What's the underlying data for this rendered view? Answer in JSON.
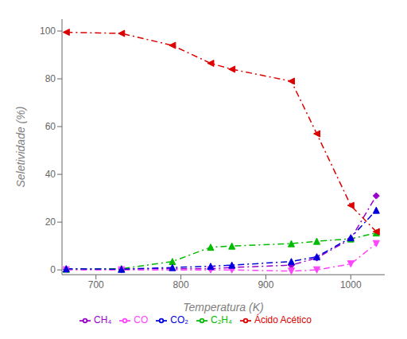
{
  "chart_data": {
    "type": "line",
    "xlabel": "Temperatura (K)",
    "ylabel": "Seletividade (%)",
    "xlim": [
      660,
      1040
    ],
    "ylim": [
      -2,
      105
    ],
    "xticks": [
      700,
      800,
      900,
      1000
    ],
    "yticks": [
      0,
      20,
      40,
      60,
      80,
      100
    ],
    "grid": false,
    "legend": "bottom",
    "series": [
      {
        "name": "CH₄",
        "color": "#9900cc",
        "marker": "diamond",
        "line_style": "dashdot",
        "x": [
          665,
          730,
          835,
          860,
          930,
          960,
          1000,
          1030
        ],
        "values": [
          0.3,
          0.4,
          0.5,
          1.0,
          2.0,
          5.0,
          13.0,
          31.0
        ]
      },
      {
        "name": "C₂H₄",
        "color": "#00bb00",
        "marker": "triangle-up",
        "line_style": "dashdot",
        "x": [
          665,
          730,
          790,
          835,
          860,
          930,
          960,
          1000,
          1030
        ],
        "values": [
          0.3,
          0.5,
          3.5,
          9.5,
          10.0,
          11.0,
          12.0,
          13.0,
          15.5
        ]
      },
      {
        "name": "CO",
        "color": "#ff44ff",
        "marker": "triangle-down",
        "line_style": "dashdot",
        "x": [
          665,
          730,
          835,
          860,
          930,
          960,
          1000,
          1030
        ],
        "values": [
          0.0,
          0.0,
          0.0,
          0.0,
          -0.5,
          0.0,
          2.5,
          11.0
        ]
      },
      {
        "name": "CO₂",
        "color": "#0000dd",
        "marker": "triangle-up",
        "line_style": "dashdot",
        "x": [
          665,
          730,
          790,
          835,
          860,
          930,
          960,
          1000,
          1030
        ],
        "values": [
          0.5,
          0.3,
          1.0,
          1.5,
          2.0,
          3.5,
          5.5,
          13.5,
          25.0
        ]
      },
      {
        "name": "Ácido Acético",
        "color": "#dd0000",
        "marker": "triangle-left",
        "line_style": "dashdot",
        "x": [
          665,
          730,
          790,
          835,
          860,
          930,
          960,
          1000,
          1030
        ],
        "values": [
          99.5,
          99.0,
          94.0,
          86.5,
          84.0,
          79.0,
          57.0,
          27.0,
          16.0
        ]
      }
    ]
  }
}
